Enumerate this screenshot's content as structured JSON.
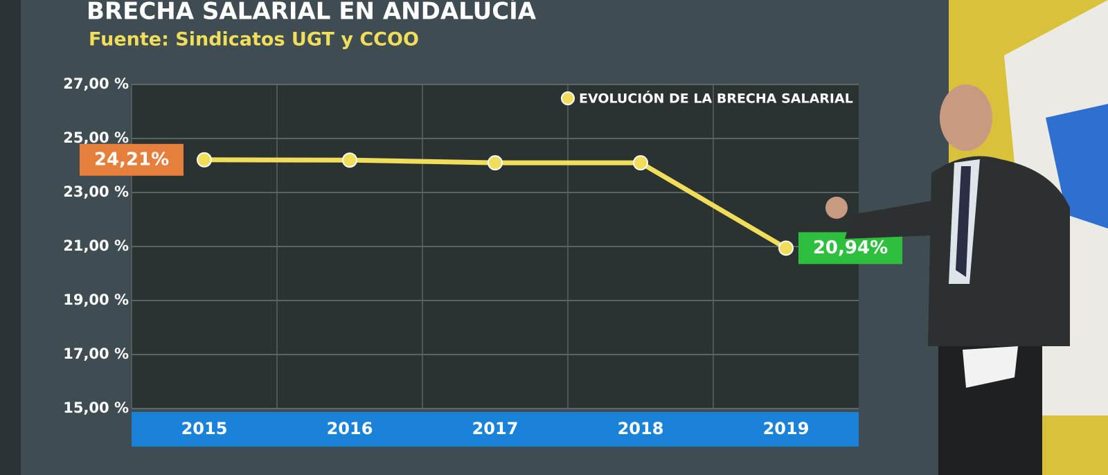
{
  "chart_data": {
    "type": "line",
    "title": "BRECHA SALARIAL EN ANDALUCÍA",
    "subtitle": "Fuente: Sindicatos UGT y CCOO",
    "categories": [
      "2015",
      "2016",
      "2017",
      "2018",
      "2019"
    ],
    "series": [
      {
        "name": "EVOLUCIÓN DE LA BRECHA SALARIAL",
        "color": "#f0dd5a",
        "values": [
          24.21,
          24.2,
          24.1,
          24.1,
          20.94
        ],
        "value_labels": [
          "24,21%",
          null,
          null,
          null,
          "20,94%"
        ]
      }
    ],
    "ylim": [
      15,
      27
    ],
    "yticks": [
      {
        "value": 15,
        "label": "15,00 %"
      },
      {
        "value": 17,
        "label": "17,00 %"
      },
      {
        "value": 19,
        "label": "19,00 %"
      },
      {
        "value": 21,
        "label": "21,00 %"
      },
      {
        "value": 23,
        "label": "23,00 %"
      },
      {
        "value": 25,
        "label": "25,00 %"
      },
      {
        "value": 27,
        "label": "27,00 %"
      }
    ],
    "grid": true,
    "legend": "top-right"
  }
}
